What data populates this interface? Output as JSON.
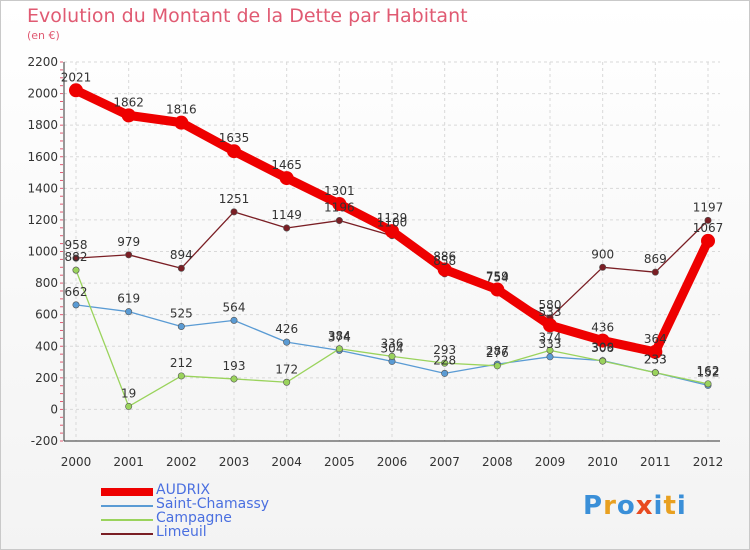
{
  "title": "Evolution du Montant de la Dette par Habitant",
  "subtitle": "(en €)",
  "logo": "Proxiti",
  "colors": {
    "title": "#e05a72",
    "grid": "#d9d9d9",
    "axis": "#333333",
    "legend_text": "#4a6fe0"
  },
  "chart_data": {
    "type": "line",
    "x": [
      "2000",
      "2001",
      "2002",
      "2003",
      "2004",
      "2005",
      "2006",
      "2007",
      "2008",
      "2009",
      "2010",
      "2011",
      "2012"
    ],
    "ylim": [
      -200,
      2200
    ],
    "yticks": [
      -200,
      0,
      200,
      400,
      600,
      800,
      1000,
      1200,
      1400,
      1600,
      1800,
      2000,
      2200
    ],
    "grid": true,
    "legend_position": "bottom-left",
    "series": [
      {
        "name": "AUDRIX",
        "color": "#ee0000",
        "values": [
          2021,
          1862,
          1816,
          1635,
          1465,
          1301,
          1129,
          886,
          759,
          533,
          436,
          364,
          1067
        ]
      },
      {
        "name": "Saint-Chamassy",
        "color": "#5a9bd4",
        "values": [
          662,
          619,
          525,
          564,
          426,
          374,
          304,
          228,
          287,
          333,
          309,
          233,
          152
        ]
      },
      {
        "name": "Campagne",
        "color": "#9ad35c",
        "values": [
          882,
          19,
          212,
          193,
          172,
          384,
          336,
          293,
          276,
          374,
          306,
          233,
          162
        ]
      },
      {
        "name": "Limeuil",
        "color": "#7a1e24",
        "values": [
          958,
          979,
          894,
          1251,
          1149,
          1196,
          1100,
          858,
          754,
          580,
          900,
          869,
          1197
        ]
      }
    ]
  }
}
